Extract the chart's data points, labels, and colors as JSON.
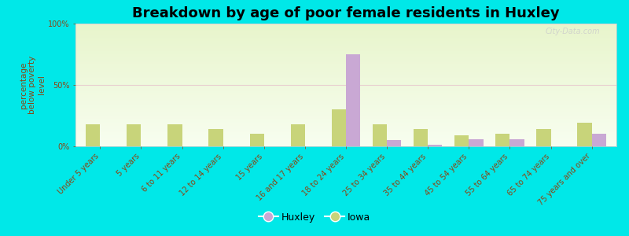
{
  "title": "Breakdown by age of poor female residents in Huxley",
  "categories": [
    "Under 5 years",
    "5 years",
    "6 to 11 years",
    "12 to 14 years",
    "15 years",
    "16 and 17 years",
    "18 to 24 years",
    "25 to 34 years",
    "35 to 44 years",
    "45 to 54 years",
    "55 to 64 years",
    "65 to 74 years",
    "75 years and over"
  ],
  "huxley_values": [
    0,
    0,
    0,
    0,
    0,
    0,
    75,
    5,
    1,
    6,
    6,
    0,
    10
  ],
  "iowa_values": [
    18,
    18,
    18,
    14,
    10,
    18,
    30,
    18,
    14,
    9,
    10,
    14,
    19
  ],
  "huxley_color": "#c9a8d4",
  "iowa_color": "#c8d47a",
  "bg_outer": "#00e8e8",
  "ylabel": "percentage\nbelow poverty\nlevel",
  "ylim": [
    0,
    100
  ],
  "yticks": [
    0,
    50,
    100
  ],
  "ytick_labels": [
    "0%",
    "50%",
    "100%"
  ],
  "bar_width": 0.35,
  "title_fontsize": 13,
  "axis_label_fontsize": 7.5,
  "tick_fontsize": 7,
  "legend_fontsize": 9,
  "watermark": "City-Data.com",
  "grid_color": "#e8d0d0",
  "text_color": "#8B4513"
}
